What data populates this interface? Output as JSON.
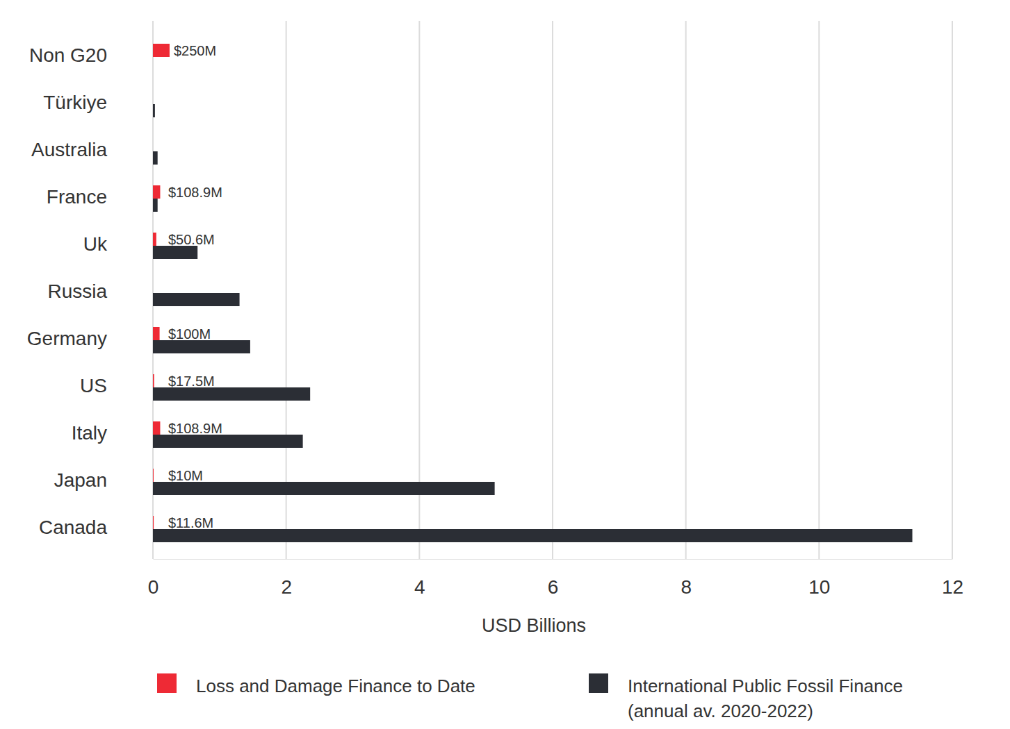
{
  "chart_data": {
    "type": "bar",
    "orientation": "horizontal",
    "categories": [
      "Non G20",
      "Türkiye",
      "Australia",
      "France",
      "Uk",
      "Russia",
      "Germany",
      "US",
      "Italy",
      "Japan",
      "Canada"
    ],
    "series": [
      {
        "name": "Loss and Damage Finance to Date",
        "color": "#ee2a35",
        "values": [
          0.25,
          null,
          null,
          0.1089,
          0.0506,
          null,
          0.1,
          0.0175,
          0.1089,
          0.01,
          0.0116
        ],
        "value_labels": [
          "$250M",
          null,
          null,
          "$108.9M",
          "$50.6M",
          null,
          "$100M",
          "$17.5M",
          "$108.9M",
          "$10M",
          "$11.6M"
        ]
      },
      {
        "name": "International Public Fossil Finance (annual av. 2020-2022)",
        "color": "#2b2e35",
        "values": [
          null,
          0.03,
          0.07,
          0.07,
          0.67,
          1.3,
          1.46,
          2.36,
          2.25,
          5.13,
          11.4
        ]
      }
    ],
    "xlabel": "USD Billions",
    "xlim": [
      0,
      12
    ],
    "xticks": [
      0,
      2,
      4,
      6,
      8,
      10,
      12
    ],
    "grid": true,
    "data_labels": true,
    "legend": "bottom"
  }
}
